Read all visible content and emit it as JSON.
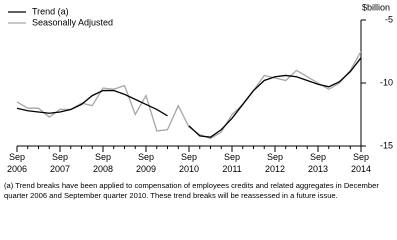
{
  "chart_data": {
    "type": "line",
    "y_label": "$billion",
    "categories": [
      "Sep 2006",
      null,
      null,
      null,
      "Sep 2007",
      null,
      null,
      null,
      "Sep 2008",
      null,
      null,
      null,
      "Sep 2009",
      null,
      null,
      null,
      "Sep 2010",
      null,
      null,
      null,
      "Sep 2011",
      null,
      null,
      null,
      "Sep 2012",
      null,
      null,
      null,
      "Sep 2013",
      null,
      null,
      null,
      "Sep 2014"
    ],
    "series": [
      {
        "name": "Trend (a)",
        "color": "#000000",
        "values": [
          -12.0,
          -12.2,
          -12.3,
          -12.4,
          -12.3,
          -12.1,
          -11.7,
          -11.0,
          -10.6,
          -10.6,
          -10.9,
          -11.3,
          -11.7,
          -12.1,
          -12.6,
          null,
          -13.4,
          -14.2,
          -14.3,
          -13.7,
          -12.8,
          -11.7,
          -10.6,
          -9.8,
          -9.5,
          -9.4,
          -9.5,
          -9.8,
          -10.1,
          -10.3,
          -9.9,
          -9.1,
          -8.0
        ]
      },
      {
        "name": "Seasonally Adjusted",
        "color": "#a6a6a6",
        "values": [
          -11.5,
          -12.0,
          -12.0,
          -12.7,
          -12.1,
          -12.1,
          -11.6,
          -11.8,
          -10.4,
          -10.5,
          -10.2,
          -12.5,
          -11.0,
          -13.8,
          -13.7,
          -11.8,
          -13.5,
          -14.1,
          -14.4,
          -13.9,
          -12.5,
          -11.7,
          -10.6,
          -9.4,
          -9.6,
          -9.8,
          -9.0,
          -9.5,
          -10.0,
          -10.5,
          -10.0,
          -9.0,
          -7.5
        ]
      }
    ],
    "ylim": [
      -15,
      -5
    ],
    "yticks": [
      -15,
      -10,
      -5
    ],
    "y_axis_side": "right",
    "grid": false,
    "legend": "top-left",
    "footnote": "(a) Trend breaks have been applied to compensation of employees credits and related aggregates in December quarter 2006 and September quarter 2010. These trend breaks will be reassessed in a future issue."
  }
}
